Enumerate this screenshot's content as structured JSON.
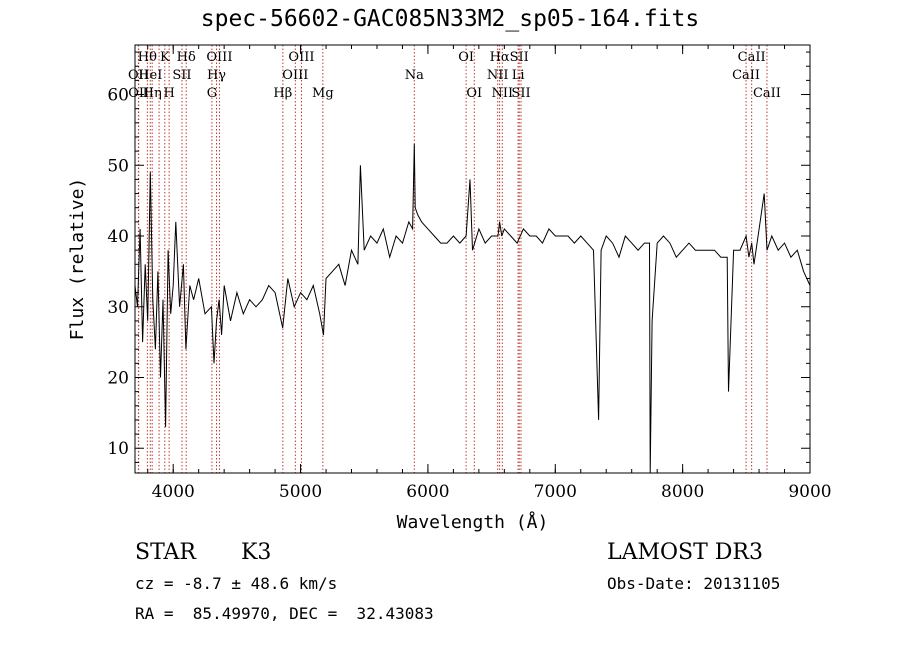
{
  "chart_data": {
    "type": "line",
    "title": "spec-56602-GAC085N33M2_sp05-164.fits",
    "xlabel": "Wavelength (Å)",
    "ylabel": "Flux (relative)",
    "xlim": [
      3700,
      9000
    ],
    "ylim": [
      6.5,
      67
    ],
    "xticks": [
      4000,
      5000,
      6000,
      7000,
      8000,
      9000
    ],
    "yticks": [
      10,
      20,
      30,
      40,
      50,
      60
    ],
    "series": [
      {
        "name": "spectrum",
        "x": [
          3700,
          3720,
          3740,
          3760,
          3780,
          3800,
          3820,
          3840,
          3860,
          3880,
          3900,
          3920,
          3940,
          3960,
          3980,
          4000,
          4020,
          4050,
          4080,
          4100,
          4130,
          4160,
          4200,
          4250,
          4300,
          4320,
          4340,
          4360,
          4380,
          4400,
          4450,
          4500,
          4550,
          4600,
          4650,
          4700,
          4750,
          4800,
          4860,
          4900,
          4950,
          5000,
          5050,
          5100,
          5150,
          5180,
          5200,
          5250,
          5300,
          5350,
          5400,
          5450,
          5470,
          5500,
          5550,
          5600,
          5650,
          5700,
          5750,
          5800,
          5850,
          5880,
          5893,
          5900,
          5920,
          5950,
          6000,
          6050,
          6100,
          6150,
          6200,
          6250,
          6300,
          6330,
          6350,
          6400,
          6450,
          6500,
          6550,
          6563,
          6580,
          6600,
          6650,
          6700,
          6750,
          6800,
          6850,
          6900,
          6950,
          7000,
          7050,
          7100,
          7150,
          7200,
          7250,
          7300,
          7340,
          7360,
          7400,
          7450,
          7500,
          7550,
          7600,
          7650,
          7700,
          7740,
          7745,
          7760,
          7800,
          7850,
          7900,
          7950,
          8000,
          8050,
          8100,
          8150,
          8200,
          8250,
          8300,
          8350,
          8360,
          8400,
          8450,
          8498,
          8520,
          8542,
          8560,
          8600,
          8640,
          8662,
          8700,
          8750,
          8800,
          8850,
          8900,
          8950,
          9000
        ],
        "y": [
          33,
          30,
          41,
          25,
          36,
          28,
          49,
          31,
          24,
          35,
          20,
          31,
          13,
          38,
          29,
          33,
          42,
          30,
          36,
          24,
          33,
          31,
          34,
          29,
          30,
          22,
          28,
          31,
          26,
          33,
          28,
          32,
          29,
          31,
          30,
          31,
          33,
          32,
          27,
          34,
          30,
          32,
          31,
          33,
          29,
          26,
          34,
          35,
          36,
          33,
          38,
          36,
          50,
          38,
          40,
          39,
          41,
          37,
          40,
          39,
          42,
          41,
          53,
          44,
          43,
          42,
          41,
          40,
          39,
          39,
          40,
          39,
          40,
          48,
          38,
          41,
          39,
          40,
          40,
          42,
          40,
          41,
          40,
          39,
          41,
          40,
          40,
          39,
          41,
          40,
          40,
          40,
          39,
          40,
          39,
          38,
          14,
          38,
          40,
          39,
          37,
          40,
          39,
          38,
          39,
          39,
          3,
          28,
          39,
          40,
          39,
          37,
          38,
          39,
          38,
          38,
          38,
          38,
          37,
          37,
          18,
          38,
          38,
          40,
          37,
          39,
          36,
          41,
          46,
          38,
          40,
          38,
          39,
          37,
          38,
          35,
          33
        ]
      }
    ],
    "annotations": [
      {
        "label": "Hθ",
        "x": 3797,
        "row": 1
      },
      {
        "label": "OII",
        "x": 3727,
        "row": 2
      },
      {
        "label": "OII",
        "x": 3729,
        "row": 3
      },
      {
        "label": "HeI",
        "x": 3820,
        "row": 2
      },
      {
        "label": "Hη",
        "x": 3835,
        "row": 3
      },
      {
        "label": "K",
        "x": 3934,
        "row": 1
      },
      {
        "label": "H",
        "x": 3968,
        "row": 3
      },
      {
        "label": "SII",
        "x": 4069,
        "row": 2
      },
      {
        "label": "Hδ",
        "x": 4102,
        "row": 1
      },
      {
        "label": "OIII",
        "x": 4363,
        "row": 1
      },
      {
        "label": "Hγ",
        "x": 4340,
        "row": 2
      },
      {
        "label": "G",
        "x": 4304,
        "row": 3
      },
      {
        "label": "OIII",
        "x": 5007,
        "row": 1
      },
      {
        "label": "OIII",
        "x": 4959,
        "row": 2
      },
      {
        "label": "Hβ",
        "x": 4861,
        "row": 3
      },
      {
        "label": "Mg",
        "x": 5175,
        "row": 3
      },
      {
        "label": "Na",
        "x": 5893,
        "row": 2
      },
      {
        "label": "OI",
        "x": 6300,
        "row": 1
      },
      {
        "label": "OI",
        "x": 6364,
        "row": 3
      },
      {
        "label": "Hα",
        "x": 6563,
        "row": 1
      },
      {
        "label": "SII",
        "x": 6717,
        "row": 1
      },
      {
        "label": "NII",
        "x": 6548,
        "row": 2
      },
      {
        "label": "Li",
        "x": 6708,
        "row": 2
      },
      {
        "label": "NII",
        "x": 6584,
        "row": 3
      },
      {
        "label": "SII",
        "x": 6731,
        "row": 3
      },
      {
        "label": "CaII",
        "x": 8542,
        "row": 1
      },
      {
        "label": "CaII",
        "x": 8498,
        "row": 2
      },
      {
        "label": "CaII",
        "x": 8662,
        "row": 3
      }
    ],
    "line_markers": [
      3727,
      3729,
      3797,
      3820,
      3835,
      3889,
      3934,
      3968,
      4069,
      4102,
      4304,
      4340,
      4363,
      4861,
      4959,
      5007,
      5175,
      5893,
      6300,
      6364,
      6548,
      6563,
      6584,
      6708,
      6717,
      6731,
      8498,
      8542,
      8662
    ]
  },
  "info": {
    "class": "STAR",
    "subclass": "K3",
    "survey": "LAMOST DR3",
    "cz": "cz = -8.7 ± 48.6 km/s",
    "obs_date": "Obs-Date: 20131105",
    "coords": "RA =  85.49970, DEC =  32.43083"
  },
  "colors": {
    "spectrum": "#000000",
    "marker": "#c0392b"
  }
}
